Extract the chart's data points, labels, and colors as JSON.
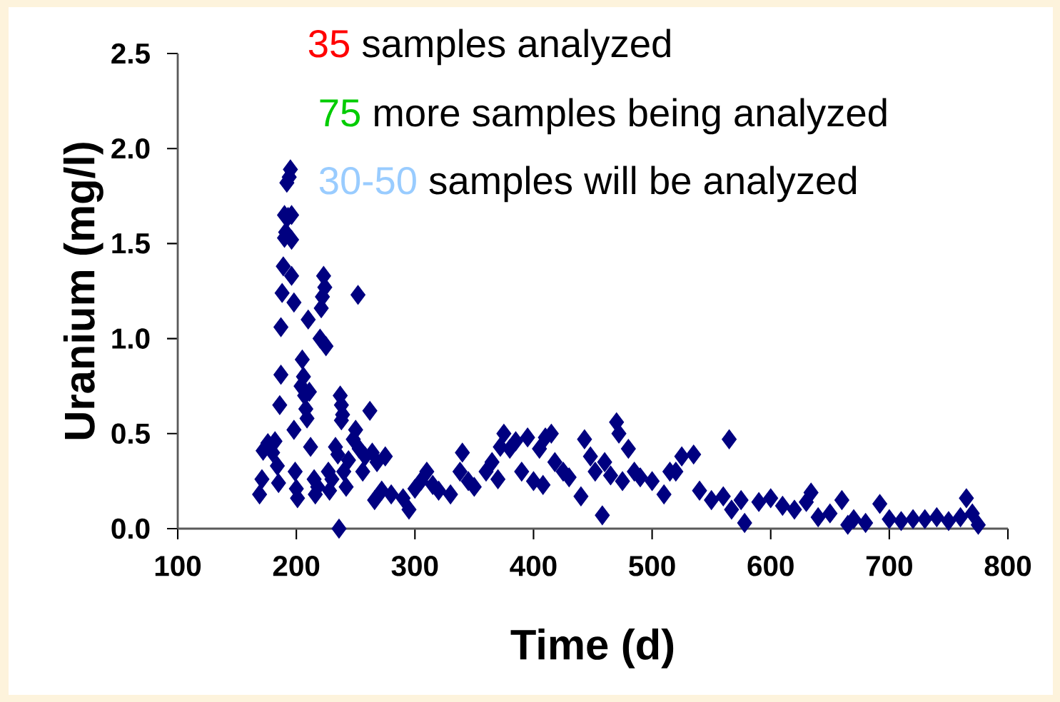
{
  "chart_data": {
    "type": "scatter",
    "xlabel": "Time (d)",
    "ylabel": "Uranium (mg/l)",
    "annotations": [
      "35",
      "samples analyzed",
      "75",
      "more samples being analyzed",
      "30-50",
      "samples will be analyzed"
    ],
    "xlim": [
      100,
      800
    ],
    "ylim": [
      0,
      2.5
    ],
    "xticks": [
      100,
      200,
      300,
      400,
      500,
      600,
      700,
      800
    ],
    "yticks": [
      {
        "value": 0,
        "label": "0.0"
      },
      {
        "value": 0.5,
        "label": "0.5"
      },
      {
        "value": 1.0,
        "label": "1.0"
      },
      {
        "value": 1.5,
        "label": "1.5"
      },
      {
        "value": 2.0,
        "label": "2.0"
      },
      {
        "value": 2.5,
        "label": "2.5"
      }
    ],
    "marker": "diamond",
    "grid": false,
    "series": [
      {
        "color": "#000080",
        "x": [
          169,
          171,
          172,
          176,
          180,
          182,
          184,
          185,
          186,
          187,
          187,
          188,
          189,
          190,
          191,
          190,
          192,
          194,
          195,
          193,
          196,
          196,
          196,
          198,
          198,
          199,
          200,
          201,
          204,
          205,
          206,
          207,
          208,
          209,
          210,
          211,
          212,
          215,
          216,
          218,
          220,
          221,
          222,
          223,
          224,
          225,
          227,
          228,
          230,
          233,
          235,
          237,
          238,
          238,
          239,
          236,
          240,
          242,
          244,
          248,
          250,
          252,
          253,
          256,
          258,
          262,
          264,
          266,
          268,
          272,
          275,
          280,
          290,
          295,
          300,
          305,
          310,
          315,
          320,
          330,
          338,
          340,
          345,
          350,
          360,
          365,
          370,
          372,
          375,
          380,
          385,
          390,
          395,
          400,
          405,
          408,
          410,
          415,
          418,
          425,
          430,
          440,
          443,
          448,
          452,
          458,
          460,
          465,
          470,
          472,
          475,
          480,
          485,
          490,
          500,
          510,
          515,
          520,
          525,
          535,
          540,
          550,
          560,
          565,
          567,
          575,
          578,
          590,
          600,
          610,
          620,
          630,
          634,
          640,
          650,
          660,
          665,
          670,
          680,
          692,
          700,
          710,
          720,
          730,
          740,
          750,
          760,
          765,
          770,
          775
        ],
        "values": [
          0.18,
          0.26,
          0.41,
          0.45,
          0.4,
          0.46,
          0.33,
          0.24,
          0.65,
          0.81,
          1.06,
          1.24,
          1.38,
          1.53,
          1.56,
          1.65,
          1.82,
          1.85,
          1.89,
          1.64,
          1.65,
          1.52,
          1.33,
          1.19,
          0.52,
          0.3,
          0.21,
          0.16,
          0.75,
          0.89,
          0.8,
          0.7,
          0.63,
          0.58,
          1.1,
          0.72,
          0.43,
          0.26,
          0.18,
          0.22,
          1.0,
          1.16,
          1.22,
          1.33,
          1.27,
          0.96,
          0.3,
          0.2,
          0.26,
          0.43,
          0.39,
          0.7,
          0.65,
          0.57,
          0.6,
          0.0,
          0.3,
          0.22,
          0.36,
          0.47,
          0.52,
          1.23,
          0.42,
          0.3,
          0.38,
          0.62,
          0.4,
          0.15,
          0.35,
          0.2,
          0.38,
          0.18,
          0.16,
          0.1,
          0.21,
          0.25,
          0.3,
          0.23,
          0.2,
          0.18,
          0.3,
          0.4,
          0.25,
          0.22,
          0.3,
          0.35,
          0.26,
          0.43,
          0.5,
          0.42,
          0.46,
          0.3,
          0.48,
          0.25,
          0.42,
          0.23,
          0.48,
          0.5,
          0.35,
          0.3,
          0.27,
          0.17,
          0.47,
          0.38,
          0.3,
          0.07,
          0.35,
          0.28,
          0.56,
          0.5,
          0.25,
          0.42,
          0.3,
          0.27,
          0.25,
          0.18,
          0.3,
          0.3,
          0.38,
          0.39,
          0.2,
          0.15,
          0.17,
          0.47,
          0.1,
          0.15,
          0.03,
          0.14,
          0.16,
          0.12,
          0.1,
          0.14,
          0.19,
          0.06,
          0.08,
          0.15,
          0.02,
          0.05,
          0.03,
          0.13,
          0.05,
          0.04,
          0.05,
          0.05,
          0.06,
          0.04,
          0.06,
          0.16,
          0.08,
          0.02
        ]
      }
    ]
  }
}
